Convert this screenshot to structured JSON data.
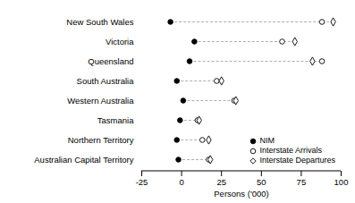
{
  "chart_data": {
    "type": "dot",
    "orientation": "horizontal",
    "x_label": "Persons ('000)",
    "categories": [
      "New South Wales",
      "Victoria",
      "Queensland",
      "South Australia",
      "Western Australia",
      "Tasmania",
      "Northern Territory",
      "Australian Capital Territory"
    ],
    "series": [
      {
        "name": "NIM",
        "color": "#000000",
        "marker": "circle",
        "values": [
          -7,
          8,
          5,
          -3,
          1,
          -1,
          -3,
          -2
        ]
      },
      {
        "name": "Interstate Arrivals",
        "color": "#000000",
        "marker": "circle-open",
        "values": [
          88,
          63,
          88,
          22,
          33,
          10,
          13,
          17
        ]
      },
      {
        "name": "Interstate Departures",
        "color": "#000000",
        "marker": "diamond-open",
        "values": [
          95,
          71,
          82,
          25,
          34,
          11,
          17,
          18
        ]
      }
    ],
    "xlim": [
      -25,
      100
    ],
    "xticks": [
      -25,
      0,
      25,
      50,
      75,
      100
    ],
    "legend": "bottom-right",
    "line_style": "dashed"
  }
}
